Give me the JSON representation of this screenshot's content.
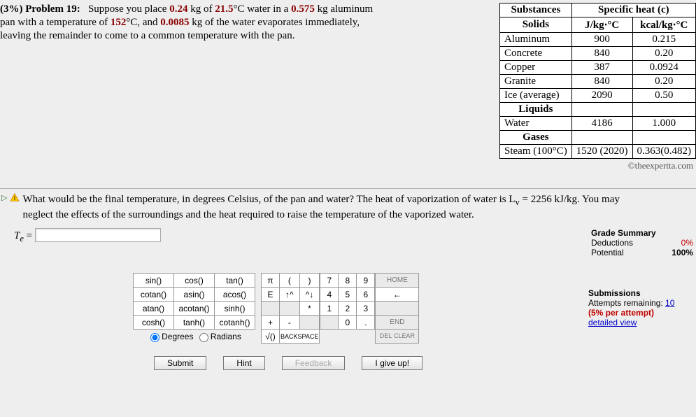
{
  "problem": {
    "percent": "(3%)",
    "label": "Problem 19:",
    "line1a": "Suppose you place ",
    "m_water": "0.24",
    "line1b": " kg of ",
    "t_water": "21.5",
    "line1c": "°C water in a ",
    "m_pan": "0.575",
    "line1d": " kg aluminum",
    "line2a": "pan with a temperature of ",
    "t_pan": "152",
    "line2b": "°C, and ",
    "m_evap": "0.0085",
    "line2c": " kg of the water evaporates immediately,",
    "line3": "leaving the remainder to come to a common temperature with the pan."
  },
  "table": {
    "h_sub": "Substances",
    "h_spec": "Specific heat (c)",
    "h_solids": "Solids",
    "h_u1": "J/kg⋅°C",
    "h_u2": "kcal/kg⋅°C",
    "rows_solids": [
      {
        "n": "Aluminum",
        "a": "900",
        "b": "0.215"
      },
      {
        "n": "Concrete",
        "a": "840",
        "b": "0.20"
      },
      {
        "n": "Copper",
        "a": "387",
        "b": "0.0924"
      },
      {
        "n": "Granite",
        "a": "840",
        "b": "0.20"
      },
      {
        "n": "Ice (average)",
        "a": "2090",
        "b": "0.50"
      }
    ],
    "h_liquids": "Liquids",
    "rows_liquids": [
      {
        "n": "Water",
        "a": "4186",
        "b": "1.000"
      }
    ],
    "h_gases": "Gases",
    "rows_gases": [
      {
        "n": "Steam (100°C)",
        "a": "1520 (2020)",
        "b": "0.363(0.482)"
      }
    ],
    "credit": "©theexpertta.com"
  },
  "question": {
    "text1": "What would be the final temperature, in degrees Celsius, of the pan and water? The heat of vaporization of water is L",
    "sub": "v",
    "text2": " = 2256 kJ/kg. You may",
    "text3": "neglect the effects of the surroundings and the heat required to raise the temperature of the vaporized water.",
    "te": "T",
    "te_sub": "e",
    "te_eq": " = ",
    "input_value": ""
  },
  "grade": {
    "title": "Grade Summary",
    "ded": "Deductions",
    "ded_v": "0%",
    "pot": "Potential",
    "pot_v": "100%",
    "sub": "Submissions",
    "att": "Attempts remaining: ",
    "att_v": "10",
    "per": "(5% per attempt)",
    "detail": "detailed view"
  },
  "keypad": {
    "funcs": [
      [
        "sin()",
        "cos()",
        "tan()"
      ],
      [
        "cotan()",
        "asin()",
        "acos()"
      ],
      [
        "atan()",
        "acotan()",
        "sinh()"
      ],
      [
        "cosh()",
        "tanh()",
        "cotanh()"
      ]
    ],
    "ops": [
      [
        "π",
        "(",
        ")"
      ],
      [
        "E",
        "↑^",
        "^↓"
      ],
      [
        "",
        "",
        "*"
      ],
      [
        "+",
        "-",
        ""
      ],
      [
        "√()",
        "BACKSPACE",
        ""
      ]
    ],
    "nums": [
      [
        "7",
        "8",
        "9"
      ],
      [
        "4",
        "5",
        "6"
      ],
      [
        "1",
        "2",
        "3"
      ],
      [
        "",
        "0",
        "."
      ]
    ],
    "navs": [
      [
        "HOME"
      ],
      [
        "←"
      ],
      [
        ""
      ],
      [
        "END"
      ],
      [
        "CLEAR"
      ]
    ],
    "del": "DEL",
    "deg": "Degrees",
    "rad": "Radians"
  },
  "buttons": {
    "submit": "Submit",
    "hint": "Hint",
    "feedback": "Feedback",
    "giveup": "I give up!"
  }
}
